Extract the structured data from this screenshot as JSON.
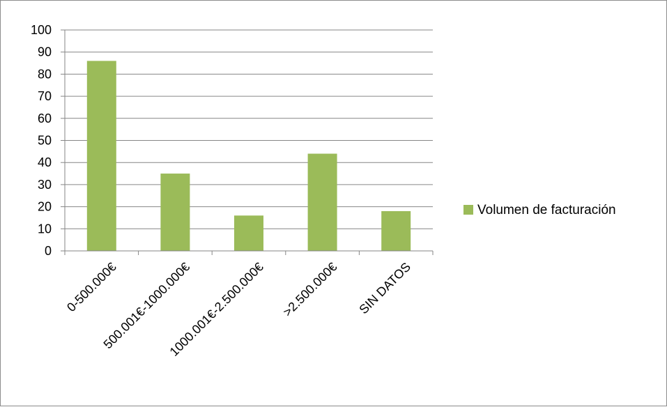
{
  "chart_data": {
    "type": "bar",
    "categories": [
      "0-500.000€",
      "500.001€-1000.000€",
      "1000.001€-2.500.000€",
      ">2.500.000€",
      "SIN DATOS"
    ],
    "series": [
      {
        "name": "Volumen de facturación",
        "values": [
          86,
          35,
          16,
          44,
          18
        ]
      }
    ],
    "ylim": [
      0,
      100
    ],
    "yticks": [
      0,
      10,
      20,
      30,
      40,
      50,
      60,
      70,
      80,
      90,
      100
    ],
    "grid": true,
    "legend": "right",
    "colors": {
      "bar": "#9bbb59",
      "grid": "#868686",
      "axis": "#868686"
    }
  }
}
